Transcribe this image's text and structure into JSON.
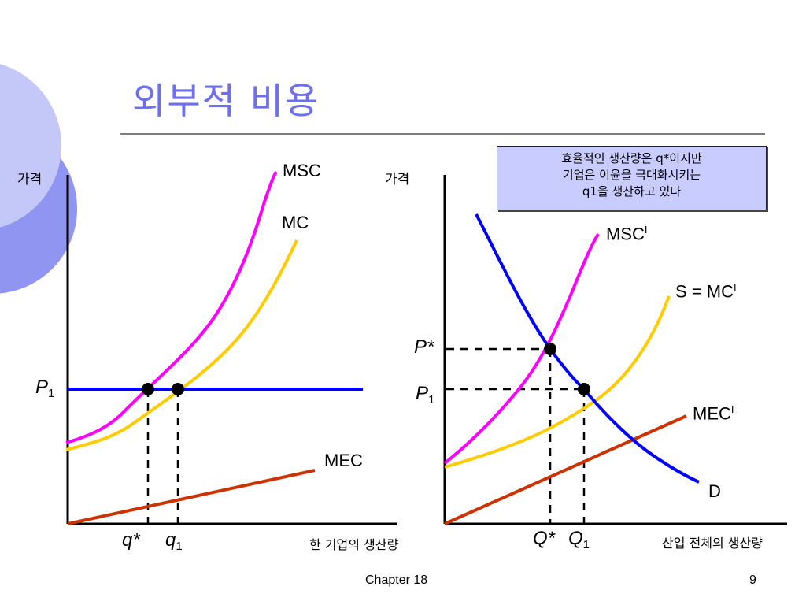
{
  "slide": {
    "title": "외부적 비용",
    "footer_left": "Chapter 18",
    "page_number": "9"
  },
  "left_panel": {
    "y_axis_label": "가격",
    "x_axis_label": "한 기업의 생산량",
    "curves": {
      "msc": "MSC",
      "mc": "MC",
      "mec": "MEC"
    },
    "price_label": "P",
    "price_sub": "1",
    "q_star": "q*",
    "q1_main": "q",
    "q1_sub": "1"
  },
  "right_panel": {
    "y_axis_label": "가격",
    "x_axis_label": "산업 전체의 생산량",
    "curves": {
      "msc": "MSC",
      "msc_sup": "I",
      "s_mc": "S = MC",
      "s_mc_sup": "I",
      "mec": "MEC",
      "mec_sup": "I",
      "d": "D"
    },
    "p_star": "P*",
    "p1_main": "P",
    "p1_sub": "1",
    "q_star": "Q*",
    "q1_main": "Q",
    "q1_sub": "1"
  },
  "note": {
    "lines": [
      "효율적인 생산량은 q*이지만",
      "기업은 이윤을 극대화시키는",
      "q1을 생산하고 있다"
    ]
  },
  "colors": {
    "msc": "#ff00ff",
    "mc": "#ffcc00",
    "mec": "#cc3300",
    "price_demand": "#0000ff",
    "title": "#6d6ff0",
    "note_bg": "#c9ccff"
  }
}
